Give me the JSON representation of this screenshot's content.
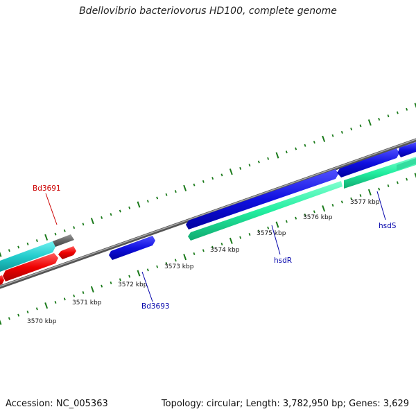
{
  "title": "Bdellovibrio bacteriovorus HD100, complete genome",
  "accession": "Accession: NC_005363",
  "topology": "Topology: circular; Length: 3,782,950 bp; Genes: 3,629",
  "scale_labels": [
    "3570 kbp",
    "3571 kbp",
    "3572 kbp",
    "3573 kbp",
    "3574 kbp",
    "3575 kbp",
    "3576 kbp",
    "3577 kbp"
  ],
  "gene_labels": [
    {
      "text": "Bd3691",
      "color": "#cc0000"
    },
    {
      "text": "Bd3693",
      "color": "#0000aa"
    },
    {
      "text": "hsdR",
      "color": "#0000aa"
    },
    {
      "text": "hsdS",
      "color": "#0000aa"
    }
  ],
  "colors": {
    "backbone": "#808080",
    "forward_blue": "#0a0adc",
    "reverse_red": "#ee0000",
    "cyan": "#22cccc",
    "gray_gene": "#666666",
    "mint": "#22eea0",
    "ticks": "#1a7a1a"
  }
}
